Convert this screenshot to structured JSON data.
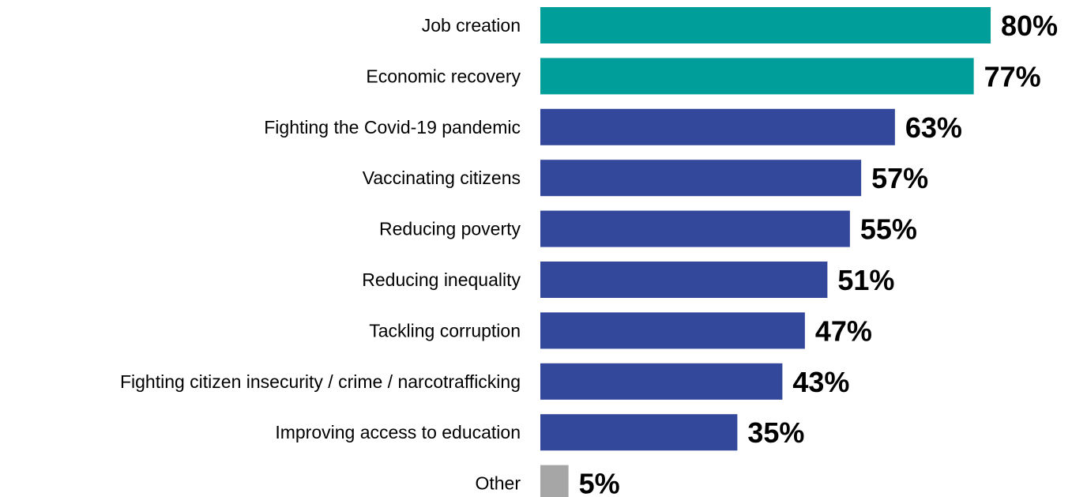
{
  "chart_data": {
    "type": "bar",
    "orientation": "horizontal",
    "categories": [
      "Job creation",
      "Economic recovery",
      "Fighting the Covid-19 pandemic",
      "Vaccinating citizens",
      "Reducing poverty",
      "Reducing inequality",
      "Tackling corruption",
      "Fighting citizen insecurity / crime / narcotrafficking",
      "Improving access to education",
      "Other"
    ],
    "values": [
      80,
      77,
      63,
      57,
      55,
      51,
      47,
      43,
      35,
      5
    ],
    "value_labels": [
      "80%",
      "77%",
      "63%",
      "57%",
      "55%",
      "51%",
      "47%",
      "43%",
      "35%",
      "5%"
    ],
    "bar_colors": [
      "#009E9A",
      "#009E9A",
      "#33479B",
      "#33479B",
      "#33479B",
      "#33479B",
      "#33479B",
      "#33479B",
      "#33479B",
      "#A6A6A6"
    ],
    "xlim": [
      0,
      80
    ],
    "grid": false,
    "legend": "none"
  }
}
